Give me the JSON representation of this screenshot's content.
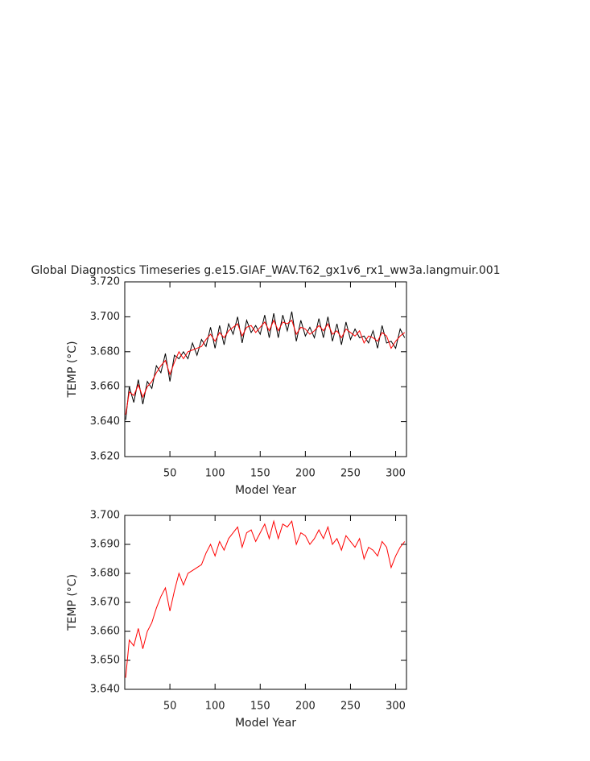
{
  "chart_data": [
    {
      "type": "line",
      "title": "Global Diagnostics Timeseries g.e15.GIAF_WAV.T62_gx1v6_rx1_ww3a.langmuir.001",
      "xlabel": "Model Year",
      "ylabel": "TEMP (°C)",
      "x": [
        1,
        5,
        10,
        15,
        20,
        25,
        30,
        35,
        40,
        45,
        50,
        55,
        60,
        65,
        70,
        75,
        80,
        85,
        90,
        95,
        100,
        105,
        110,
        115,
        120,
        125,
        130,
        135,
        140,
        145,
        150,
        155,
        160,
        165,
        170,
        175,
        180,
        185,
        190,
        195,
        200,
        205,
        210,
        215,
        220,
        225,
        230,
        235,
        240,
        245,
        250,
        255,
        260,
        265,
        270,
        275,
        280,
        285,
        290,
        295,
        300,
        305,
        310
      ],
      "series": [
        {
          "color": "#000000",
          "values": [
            3.641,
            3.66,
            3.651,
            3.664,
            3.65,
            3.663,
            3.659,
            3.672,
            3.668,
            3.679,
            3.663,
            3.678,
            3.676,
            3.68,
            3.676,
            3.685,
            3.678,
            3.687,
            3.683,
            3.694,
            3.682,
            3.695,
            3.684,
            3.696,
            3.69,
            3.7,
            3.685,
            3.698,
            3.691,
            3.695,
            3.69,
            3.701,
            3.688,
            3.702,
            3.688,
            3.701,
            3.692,
            3.703,
            3.686,
            3.698,
            3.689,
            3.694,
            3.688,
            3.699,
            3.688,
            3.7,
            3.686,
            3.696,
            3.684,
            3.697,
            3.687,
            3.693,
            3.688,
            3.689,
            3.685,
            3.692,
            3.682,
            3.695,
            3.685,
            3.686,
            3.682,
            3.693,
            3.688
          ]
        },
        {
          "color": "#ff0000",
          "values": [
            3.644,
            3.657,
            3.655,
            3.661,
            3.654,
            3.66,
            3.663,
            3.668,
            3.672,
            3.675,
            3.667,
            3.674,
            3.68,
            3.676,
            3.68,
            3.681,
            3.682,
            3.683,
            3.687,
            3.69,
            3.686,
            3.691,
            3.688,
            3.692,
            3.694,
            3.696,
            3.689,
            3.694,
            3.695,
            3.691,
            3.694,
            3.697,
            3.692,
            3.698,
            3.692,
            3.697,
            3.696,
            3.698,
            3.69,
            3.694,
            3.693,
            3.69,
            3.692,
            3.695,
            3.692,
            3.696,
            3.69,
            3.692,
            3.688,
            3.693,
            3.691,
            3.689,
            3.692,
            3.685,
            3.689,
            3.688,
            3.686,
            3.691,
            3.689,
            3.682,
            3.686,
            3.689,
            3.691
          ]
        }
      ],
      "xlim": [
        0,
        312
      ],
      "xticks": [
        50,
        100,
        150,
        200,
        250,
        300
      ],
      "ylim": [
        3.62,
        3.72
      ],
      "yticks": [
        {
          "value": 3.62,
          "label": "3.620"
        },
        {
          "value": 3.64,
          "label": "3.640"
        },
        {
          "value": 3.66,
          "label": "3.660"
        },
        {
          "value": 3.68,
          "label": "3.680"
        },
        {
          "value": 3.7,
          "label": "3.700"
        },
        {
          "value": 3.72,
          "label": "3.720"
        }
      ]
    },
    {
      "type": "line",
      "xlabel": "Model Year",
      "ylabel": "TEMP (°C)",
      "x": [
        1,
        5,
        10,
        15,
        20,
        25,
        30,
        35,
        40,
        45,
        50,
        55,
        60,
        65,
        70,
        75,
        80,
        85,
        90,
        95,
        100,
        105,
        110,
        115,
        120,
        125,
        130,
        135,
        140,
        145,
        150,
        155,
        160,
        165,
        170,
        175,
        180,
        185,
        190,
        195,
        200,
        205,
        210,
        215,
        220,
        225,
        230,
        235,
        240,
        245,
        250,
        255,
        260,
        265,
        270,
        275,
        280,
        285,
        290,
        295,
        300,
        305,
        310
      ],
      "series": [
        {
          "color": "#ff0000",
          "values": [
            3.644,
            3.657,
            3.655,
            3.661,
            3.654,
            3.66,
            3.663,
            3.668,
            3.672,
            3.675,
            3.667,
            3.674,
            3.68,
            3.676,
            3.68,
            3.681,
            3.682,
            3.683,
            3.687,
            3.69,
            3.686,
            3.691,
            3.688,
            3.692,
            3.694,
            3.696,
            3.689,
            3.694,
            3.695,
            3.691,
            3.694,
            3.697,
            3.692,
            3.698,
            3.692,
            3.697,
            3.696,
            3.698,
            3.69,
            3.694,
            3.693,
            3.69,
            3.692,
            3.695,
            3.692,
            3.696,
            3.69,
            3.692,
            3.688,
            3.693,
            3.691,
            3.689,
            3.692,
            3.685,
            3.689,
            3.688,
            3.686,
            3.691,
            3.689,
            3.682,
            3.686,
            3.689,
            3.691
          ]
        }
      ],
      "xlim": [
        0,
        312
      ],
      "xticks": [
        50,
        100,
        150,
        200,
        250,
        300
      ],
      "ylim": [
        3.64,
        3.7
      ],
      "yticks": [
        {
          "value": 3.64,
          "label": "3.640"
        },
        {
          "value": 3.65,
          "label": "3.650"
        },
        {
          "value": 3.66,
          "label": "3.660"
        },
        {
          "value": 3.67,
          "label": "3.670"
        },
        {
          "value": 3.68,
          "label": "3.680"
        },
        {
          "value": 3.69,
          "label": "3.690"
        },
        {
          "value": 3.7,
          "label": "3.700"
        }
      ]
    }
  ]
}
